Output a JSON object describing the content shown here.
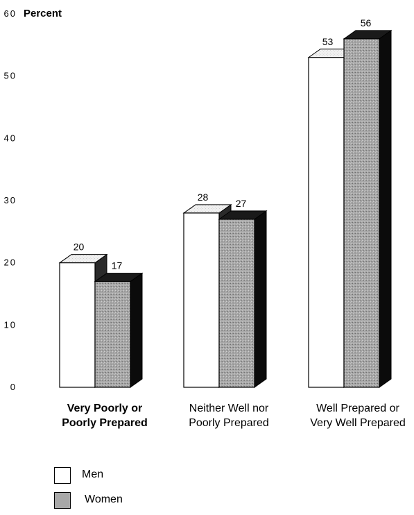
{
  "chart_data": {
    "type": "bar",
    "ylabel": "Percent",
    "ylim": [
      0,
      60
    ],
    "yticks": [
      "0",
      "10",
      "20",
      "30",
      "40",
      "50",
      "60"
    ],
    "categories": [
      "Very Poorly or\nPoorly Prepared",
      "Neither Well nor\nPoorly Prepared",
      "Well Prepared or\nVery Well Prepared"
    ],
    "category_bold": [
      true,
      false,
      false
    ],
    "series": [
      {
        "name": "Men",
        "values": [
          20,
          28,
          53
        ],
        "color": "#ffffff"
      },
      {
        "name": "Women",
        "values": [
          17,
          27,
          56
        ],
        "color": "#a8a8a8"
      }
    ],
    "data_labels": [
      [
        "20",
        "28",
        "53"
      ],
      [
        "17",
        "27",
        "56"
      ]
    ],
    "grid": false,
    "legend_position": "bottom-left",
    "style": "3d"
  }
}
